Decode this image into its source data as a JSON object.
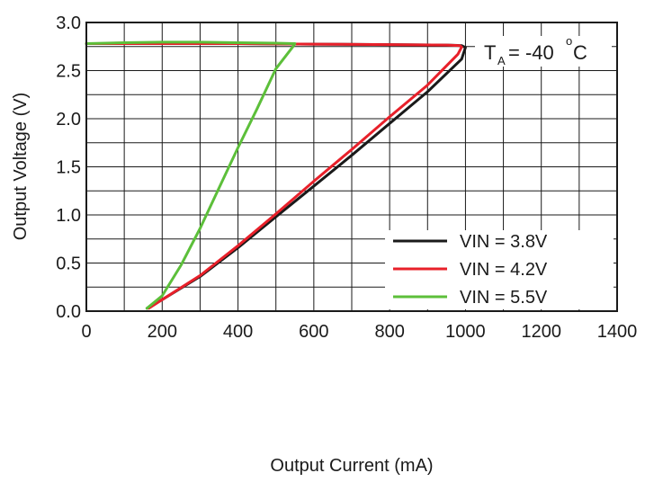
{
  "chart_data": {
    "type": "line",
    "xlabel": "Output Current (mA)",
    "ylabel": "Output Voltage (V)",
    "xlim": [
      0,
      1400
    ],
    "ylim": [
      0,
      3.0
    ],
    "xticks": [
      0,
      200,
      400,
      600,
      800,
      1000,
      1200,
      1400
    ],
    "yticks": [
      0.0,
      0.5,
      1.0,
      1.5,
      2.0,
      2.5,
      3.0
    ],
    "xtick_labels": [
      "0",
      "200",
      "400",
      "600",
      "800",
      "1000",
      "1200",
      "1400"
    ],
    "ytick_labels": [
      "0.0",
      "0.5",
      "1.0",
      "1.5",
      "2.0",
      "2.5",
      "3.0"
    ],
    "grid": true,
    "legend_position": "bottom-right",
    "annotation": {
      "prefix": "T",
      "subscript": "A",
      "value": " = -40",
      "degree": "o",
      "unit": "C"
    },
    "series": [
      {
        "name": "VIN = 3.8V",
        "color": "#1a1a1a",
        "x": [
          0,
          200,
          400,
          600,
          800,
          950,
          990,
          1000,
          990,
          900,
          800,
          700,
          600,
          500,
          400,
          300,
          200,
          160
        ],
        "y": [
          2.78,
          2.78,
          2.78,
          2.775,
          2.77,
          2.765,
          2.76,
          2.74,
          2.62,
          2.28,
          1.95,
          1.62,
          1.3,
          0.98,
          0.66,
          0.36,
          0.12,
          0.03
        ]
      },
      {
        "name": "VIN = 4.2V",
        "color": "#e8202a",
        "x": [
          0,
          200,
          400,
          600,
          800,
          950,
          985,
          990,
          980,
          900,
          800,
          700,
          600,
          500,
          400,
          300,
          200,
          165
        ],
        "y": [
          2.78,
          2.78,
          2.78,
          2.775,
          2.77,
          2.765,
          2.76,
          2.745,
          2.67,
          2.35,
          2.02,
          1.68,
          1.35,
          1.01,
          0.68,
          0.37,
          0.12,
          0.03
        ]
      },
      {
        "name": "VIN = 5.5V",
        "color": "#5cbf3a",
        "x": [
          0,
          100,
          200,
          300,
          400,
          500,
          550,
          545,
          500,
          450,
          400,
          350,
          300,
          250,
          200,
          160
        ],
        "y": [
          2.78,
          2.79,
          2.795,
          2.795,
          2.79,
          2.785,
          2.78,
          2.75,
          2.52,
          2.1,
          1.7,
          1.28,
          0.86,
          0.48,
          0.16,
          0.03
        ]
      }
    ]
  }
}
